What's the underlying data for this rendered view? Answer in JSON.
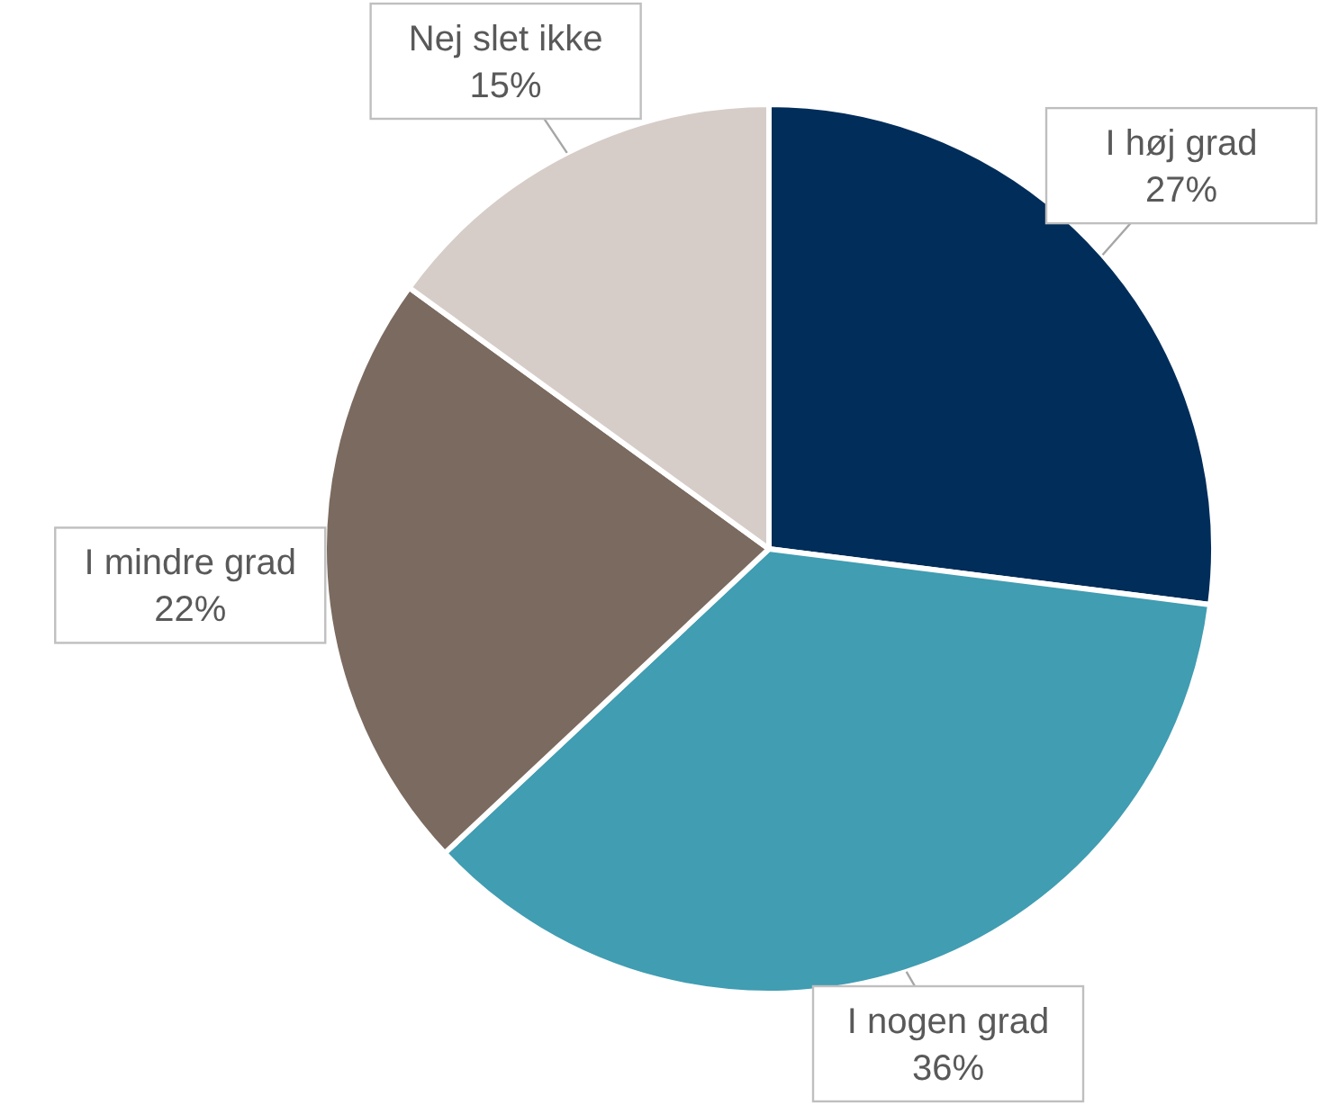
{
  "chart_data": {
    "type": "pie",
    "categories": [
      "I høj grad",
      "I nogen grad",
      "I mindre grad",
      "Nej slet ikke"
    ],
    "values": [
      27,
      36,
      22,
      15
    ],
    "colors": [
      "#002d5a",
      "#409db2",
      "#7b6a5f",
      "#d6cdc8"
    ],
    "value_labels": [
      "27%",
      "36%",
      "22%",
      "15%"
    ]
  }
}
